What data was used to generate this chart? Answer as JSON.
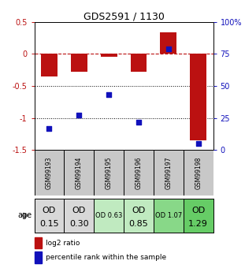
{
  "title": "GDS2591 / 1130",
  "samples": [
    "GSM99193",
    "GSM99194",
    "GSM99195",
    "GSM99196",
    "GSM99197",
    "GSM99198"
  ],
  "log2_ratio": [
    -0.35,
    -0.28,
    -0.04,
    -0.28,
    0.33,
    -1.35
  ],
  "percentile_rank": [
    17,
    27,
    43,
    22,
    79,
    5
  ],
  "age_labels_line1": [
    "OD",
    "OD",
    "OD 0.63",
    "OD",
    "OD 1.07",
    "OD"
  ],
  "age_labels_line2": [
    "0.15",
    "0.30",
    "",
    "0.85",
    "",
    "1.29"
  ],
  "age_fontsize_large": [
    true,
    true,
    false,
    true,
    false,
    true
  ],
  "cell_colors": [
    "#d8d8d8",
    "#d8d8d8",
    "#c0eac0",
    "#c0eac0",
    "#88d888",
    "#66cc66"
  ],
  "header_bg": "#c8c8c8",
  "bar_color": "#bb1111",
  "dot_color": "#1111bb",
  "ylim_left": [
    -1.5,
    0.5
  ],
  "ylim_right": [
    0,
    100
  ],
  "yticks_left": [
    -1.5,
    -1.0,
    -0.5,
    0.0,
    0.5
  ],
  "ytick_labels_left": [
    "-1.5",
    "-1",
    "-0.5",
    "0",
    "0.5"
  ],
  "yticks_right": [
    0,
    25,
    50,
    75,
    100
  ],
  "ytick_labels_right": [
    "0",
    "25",
    "50",
    "75",
    "100%"
  ],
  "dotted_lines": [
    -0.5,
    -1.0
  ],
  "background_color": "#ffffff"
}
